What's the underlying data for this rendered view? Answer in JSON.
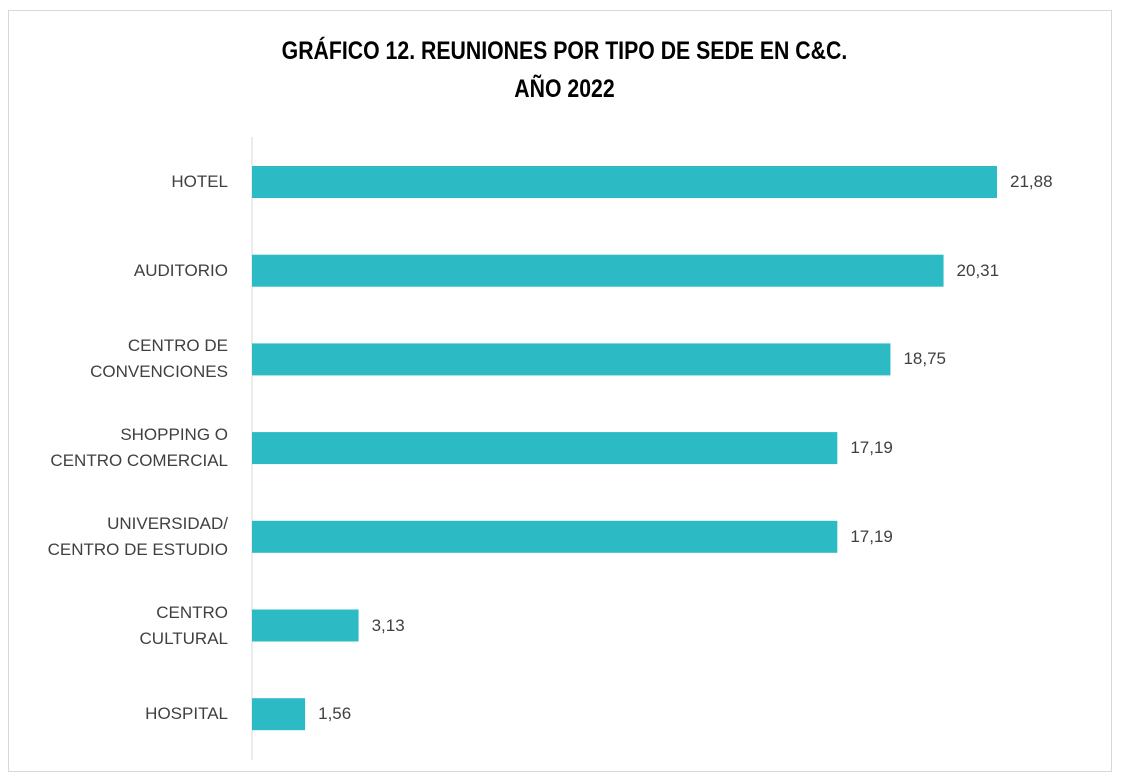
{
  "chart_data": {
    "type": "bar",
    "orientation": "horizontal",
    "title": "GRÁFICO 12. REUNIONES POR TIPO DE SEDE EN C&C.\nAÑO 2022",
    "categories": [
      "HOTEL",
      "AUDITORIO",
      "CENTRO DE\nCONVENCIONES",
      "SHOPPING O\nCENTRO COMERCIAL",
      "UNIVERSIDAD/\nCENTRO DE ESTUDIO",
      "CENTRO\nCULTURAL",
      "HOSPITAL"
    ],
    "values": [
      21.88,
      20.31,
      18.75,
      17.19,
      17.19,
      3.13,
      1.56
    ],
    "value_labels": [
      "21,88",
      "20,31",
      "18,75",
      "17,19",
      "17,19",
      "3,13",
      "1,56"
    ],
    "color": "#2cbac4"
  }
}
